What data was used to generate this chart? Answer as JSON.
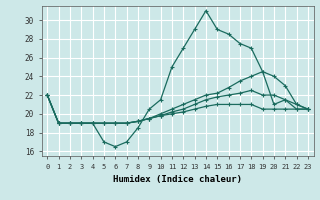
{
  "xlabel": "Humidex (Indice chaleur)",
  "bg_color": "#cde8e8",
  "grid_color": "#ffffff",
  "line_color": "#1a6b5e",
  "xlim": [
    -0.5,
    23.5
  ],
  "ylim": [
    15.5,
    31.5
  ],
  "yticks": [
    16,
    18,
    20,
    22,
    24,
    26,
    28,
    30
  ],
  "xticks": [
    0,
    1,
    2,
    3,
    4,
    5,
    6,
    7,
    8,
    9,
    10,
    11,
    12,
    13,
    14,
    15,
    16,
    17,
    18,
    19,
    20,
    21,
    22,
    23
  ],
  "lines": [
    [
      22,
      19,
      19,
      19,
      19,
      17,
      16.5,
      17,
      18.5,
      20.5,
      21.5,
      25,
      27,
      29,
      31,
      29,
      28.5,
      27.5,
      27,
      24.5,
      21,
      21.5,
      20.5,
      20.5
    ],
    [
      22,
      19,
      19,
      19,
      19,
      19,
      19,
      19,
      19.2,
      19.5,
      20,
      20.5,
      21,
      21.5,
      22,
      22.2,
      22.8,
      23.5,
      24,
      24.5,
      24,
      23,
      21,
      20.5
    ],
    [
      22,
      19,
      19,
      19,
      19,
      19,
      19,
      19,
      19.2,
      19.5,
      19.8,
      20.2,
      20.5,
      21,
      21.5,
      21.8,
      22,
      22.2,
      22.5,
      22,
      22,
      21.5,
      21,
      20.5
    ],
    [
      22,
      19,
      19,
      19,
      19,
      19,
      19,
      19,
      19.2,
      19.5,
      19.8,
      20,
      20.2,
      20.5,
      20.8,
      21,
      21,
      21,
      21,
      20.5,
      20.5,
      20.5,
      20.5,
      20.5
    ]
  ]
}
